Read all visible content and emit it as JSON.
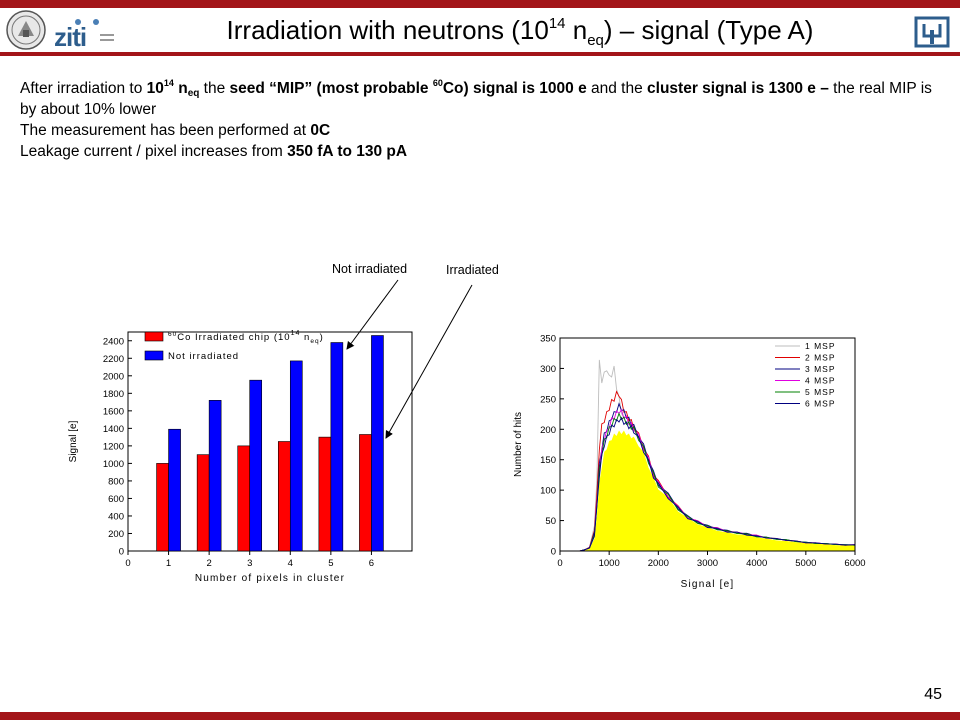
{
  "header": {
    "title_part1": "Irradiation with neutrons (10",
    "title_exp": "14",
    "title_part2": " n",
    "title_sub": "eq",
    "title_part3": ") – signal (Type A)",
    "logo_text": "ziti"
  },
  "body": {
    "line1_a": "After irradiation to ",
    "line1_b": "10",
    "line1_b_sup": "14",
    "line1_c": " n",
    "line1_c_sub": "eq",
    "line1_d": " the ",
    "line1_e": "seed “MIP” (most probable ",
    "line1_e_sup": "60",
    "line1_f": "Co) signal is 1000 e",
    "line1_g": " and the ",
    "line1_h": "cluster signal is 1300 e –",
    "line1_i": " the real MIP is by about 10% lower",
    "line2_a": "The measurement has been performed at ",
    "line2_b": "0C",
    "line3_a": "Leakage current / pixel increases from ",
    "line3_b": "350 fA to 130 pA"
  },
  "annotations": {
    "not_irradiated": "Not irradiated",
    "irradiated": "Irradiated"
  },
  "page_number": "45",
  "colors": {
    "accent_bar": "#a31519",
    "red": "#ff0000",
    "blue": "#0000ff",
    "yellow": "#ffff00"
  },
  "chart_data": [
    {
      "type": "bar",
      "xlabel": "Number of pixels in cluster",
      "ylabel": "Signal [e]",
      "xlim": [
        0,
        7
      ],
      "ylim": [
        0,
        2500
      ],
      "xticks": [
        0,
        1,
        2,
        3,
        4,
        5,
        6
      ],
      "yticks": [
        0,
        200,
        400,
        600,
        800,
        1000,
        1200,
        1400,
        1600,
        1800,
        2000,
        2200,
        2400
      ],
      "categories": [
        1,
        2,
        3,
        4,
        5,
        6
      ],
      "legend_position": "top-left",
      "series": [
        {
          "name_pre": "60",
          "name": "Co Irradiated chip (10",
          "name_exp": "14",
          "name_post": " n",
          "name_sub": "eq",
          "name_end": ")",
          "color": "#ff0000",
          "values": [
            1000,
            1100,
            1200,
            1250,
            1300,
            1330
          ]
        },
        {
          "name": "Not irradiated",
          "color": "#0000ff",
          "values": [
            1390,
            1720,
            1950,
            2170,
            2380,
            2460
          ]
        }
      ]
    },
    {
      "type": "line",
      "xlabel": "Signal [e]",
      "ylabel": "Number of hits",
      "xlim": [
        0,
        6000
      ],
      "ylim": [
        0,
        350
      ],
      "xticks": [
        0,
        1000,
        2000,
        3000,
        4000,
        5000,
        6000
      ],
      "yticks": [
        0,
        50,
        100,
        150,
        200,
        250,
        300,
        350
      ],
      "legend_position": "top-right",
      "x": [
        0,
        400,
        500,
        600,
        700,
        750,
        800,
        850,
        900,
        950,
        1000,
        1050,
        1100,
        1150,
        1200,
        1250,
        1300,
        1350,
        1400,
        1450,
        1500,
        1600,
        1700,
        1800,
        1900,
        2000,
        2200,
        2400,
        2600,
        2800,
        3000,
        3200,
        3400,
        3600,
        3800,
        4000,
        4200,
        4400,
        4600,
        4800,
        5000,
        5200,
        5400,
        5600,
        5800,
        6000
      ],
      "series": [
        {
          "name": "1 MSP",
          "color": "#bdbdbd",
          "values": [
            0,
            0,
            2,
            6,
            40,
            120,
            310,
            280,
            290,
            300,
            285,
            290,
            300,
            270,
            250,
            230,
            215,
            215,
            210,
            205,
            200,
            185,
            170,
            150,
            125,
            110,
            90,
            70,
            55,
            48,
            40,
            36,
            32,
            30,
            28,
            25,
            22,
            20,
            18,
            16,
            14,
            13,
            12,
            11,
            10,
            10
          ]
        },
        {
          "name": "2 MSP",
          "color": "#e00000",
          "values": [
            0,
            0,
            2,
            6,
            35,
            90,
            170,
            205,
            215,
            225,
            235,
            245,
            250,
            258,
            258,
            245,
            232,
            225,
            218,
            212,
            205,
            190,
            172,
            152,
            128,
            112,
            92,
            72,
            56,
            48,
            41,
            37,
            33,
            30,
            28,
            25,
            22,
            20,
            18,
            16,
            14,
            13,
            12,
            11,
            10,
            10
          ]
        },
        {
          "name": "3 MSP",
          "color": "#000080",
          "values": [
            0,
            0,
            2,
            5,
            30,
            80,
            140,
            170,
            190,
            200,
            210,
            220,
            225,
            232,
            238,
            235,
            228,
            222,
            216,
            210,
            204,
            190,
            172,
            152,
            128,
            112,
            92,
            72,
            56,
            48,
            41,
            37,
            33,
            30,
            28,
            25,
            22,
            20,
            18,
            16,
            14,
            13,
            12,
            11,
            10,
            10
          ]
        },
        {
          "name": "4 MSP",
          "color": "#e000e0",
          "values": [
            0,
            0,
            2,
            5,
            28,
            78,
            135,
            165,
            185,
            195,
            205,
            215,
            220,
            226,
            230,
            228,
            222,
            218,
            212,
            207,
            202,
            188,
            170,
            150,
            126,
            110,
            91,
            71,
            56,
            48,
            41,
            37,
            33,
            30,
            28,
            25,
            22,
            20,
            18,
            16,
            14,
            13,
            12,
            11,
            10,
            10
          ]
        },
        {
          "name": "5 MSP",
          "color": "#008000",
          "values": [
            0,
            0,
            2,
            5,
            26,
            75,
            130,
            160,
            180,
            190,
            200,
            208,
            214,
            218,
            222,
            220,
            216,
            212,
            208,
            204,
            200,
            186,
            168,
            148,
            125,
            109,
            90,
            70,
            55,
            47,
            40,
            36,
            32,
            30,
            27,
            24,
            22,
            20,
            18,
            16,
            14,
            13,
            12,
            11,
            10,
            10
          ]
        },
        {
          "name": "6 MSP",
          "color": "#000080",
          "values": [
            0,
            0,
            2,
            5,
            25,
            72,
            125,
            155,
            175,
            185,
            195,
            203,
            208,
            212,
            216,
            215,
            212,
            208,
            205,
            202,
            198,
            184,
            166,
            146,
            124,
            108,
            89,
            70,
            55,
            47,
            40,
            36,
            32,
            30,
            27,
            24,
            22,
            20,
            18,
            16,
            14,
            13,
            12,
            11,
            10,
            10
          ]
        }
      ],
      "fill": {
        "color": "#ffff00",
        "values": [
          0,
          0,
          1,
          4,
          20,
          60,
          110,
          140,
          160,
          170,
          178,
          185,
          190,
          192,
          195,
          195,
          195,
          193,
          190,
          188,
          185,
          175,
          160,
          140,
          118,
          104,
          86,
          67,
          53,
          45,
          38,
          34,
          30,
          28,
          26,
          23,
          20,
          18,
          16,
          15,
          13,
          12,
          11,
          10,
          9,
          9
        ]
      }
    }
  ]
}
